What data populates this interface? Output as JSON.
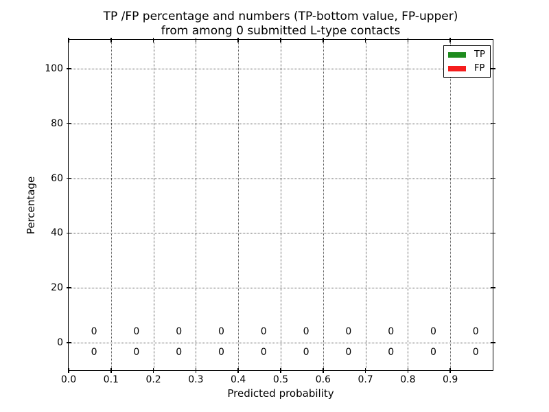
{
  "title": {
    "line1": "TP /FP percentage and numbers (TP-bottom value, FP-upper)",
    "line2": "from among 0 submitted L-type contacts"
  },
  "legend": {
    "position": "upper right",
    "items": [
      {
        "label": "TP",
        "color": "#1e8b1e"
      },
      {
        "label": "FP",
        "color": "#f51d1d"
      }
    ]
  },
  "chart_data": {
    "type": "bar",
    "title": "TP /FP percentage and numbers (TP-bottom value, FP-upper) from among 0 submitted L-type contacts",
    "xlabel": "Predicted probability",
    "ylabel": "Percentage",
    "xlim": [
      0.0,
      1.0
    ],
    "ylim": [
      -10,
      110.5
    ],
    "xtick_values": [
      0.0,
      0.1,
      0.2,
      0.3,
      0.4,
      0.5,
      0.6,
      0.7,
      0.8,
      0.9
    ],
    "xtick_labels": [
      "0.0",
      "0.1",
      "0.2",
      "0.3",
      "0.4",
      "0.5",
      "0.6",
      "0.7",
      "0.8",
      "0.9"
    ],
    "ytick_values": [
      0,
      20,
      40,
      60,
      80,
      100
    ],
    "ytick_labels": [
      "0",
      "20",
      "40",
      "60",
      "80",
      "100"
    ],
    "grid": true,
    "grid_linestyle": "dotted",
    "legend_position": "upper right",
    "bin_centers": [
      0.06,
      0.16,
      0.26,
      0.36,
      0.46,
      0.56,
      0.66,
      0.76,
      0.86,
      0.96
    ],
    "series": [
      {
        "name": "TP",
        "color": "#1e8b1e",
        "label_row": "bottom",
        "label_y": -3.5,
        "values": [
          0,
          0,
          0,
          0,
          0,
          0,
          0,
          0,
          0,
          0
        ]
      },
      {
        "name": "FP",
        "color": "#f51d1d",
        "label_row": "upper",
        "label_y": 4,
        "values": [
          0,
          0,
          0,
          0,
          0,
          0,
          0,
          0,
          0,
          0
        ]
      }
    ]
  }
}
